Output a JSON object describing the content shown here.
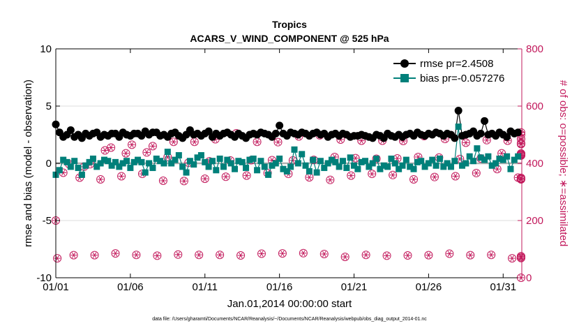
{
  "colors": {
    "rmse": "#000000",
    "bias": "#00807a",
    "obs": "#c2185b",
    "zero_line": "#b0b0b0",
    "grid": "#dddddd"
  },
  "chart_data": {
    "type": "line",
    "title": "Tropics",
    "subtitle": "ACARS_V_WIND_COMPONENT @ 525 hPa",
    "xlabel": "Jan.01,2014 00:00:00 start",
    "ylabel_left": "rmse and bias (model - observation)",
    "ylabel_right": "# of obs: o=possible; ∗=assimilated",
    "footnote": "data file: /Users/gharamti/Documents/NCAR/Reanalysis/~/Documents/NCAR/Reanalysis/webpub/obs_diag_output_2014-01.nc",
    "ylim_left": [
      -10,
      10
    ],
    "ylim_right": [
      0,
      800
    ],
    "xlim": [
      0,
      31.25
    ],
    "y_ticks_left": [
      "10",
      "5",
      "0",
      "-5",
      "-10"
    ],
    "y_ticks_right": [
      "800",
      "600",
      "400",
      "200",
      "0"
    ],
    "x_ticks": [
      "01/01",
      "01/06",
      "01/11",
      "01/16",
      "01/21",
      "01/26",
      "01/31"
    ],
    "x_tick_days": [
      0,
      5,
      10,
      15,
      20,
      25,
      30
    ],
    "legend": {
      "rmse": "rmse pr=2.4508",
      "bias": "bias pr=-0.057276",
      "position": "top-right"
    },
    "series": [
      {
        "name": "rmse",
        "values": [
          3.4,
          2.7,
          2.3,
          2.5,
          2.9,
          2.3,
          2.5,
          2.2,
          2.6,
          2.4,
          2.6,
          2.7,
          2.3,
          2.5,
          2.4,
          2.6,
          2.6,
          2.3,
          2.7,
          2.5,
          2.4,
          2.6,
          2.6,
          2.4,
          2.8,
          2.5,
          2.7,
          2.7,
          2.4,
          2.5,
          2.3,
          2.6,
          2.7,
          2.4,
          2.2,
          2.5,
          2.9,
          2.5,
          2.6,
          2.4,
          2.6,
          2.8,
          2.3,
          2.6,
          2.4,
          2.6,
          2.7,
          2.5,
          2.3,
          2.6,
          2.4,
          2.2,
          2.5,
          2.6,
          2.5,
          2.7,
          2.6,
          2.5,
          2.3,
          2.6,
          3.3,
          2.6,
          2.4,
          2.7,
          2.6,
          2.5,
          2.7,
          2.6,
          2.4,
          2.6,
          2.7,
          2.5,
          2.6,
          2.3,
          2.5,
          2.6,
          2.4,
          2.6,
          2.5,
          2.3,
          2.4,
          2.4,
          2.5,
          2.4,
          2.3,
          2.2,
          2.5,
          2.4,
          2.2,
          2.6,
          2.4,
          2.3,
          2.5,
          2.3,
          2.5,
          2.6,
          2.4,
          2.7,
          2.5,
          2.4,
          2.6,
          2.5,
          2.7,
          2.6,
          2.4,
          2.6,
          2.5,
          2.2,
          4.6,
          2.4,
          2.5,
          2.6,
          2.8,
          2.4,
          2.6,
          3.7,
          2.5,
          2.6,
          2.4,
          2.7,
          2.5,
          2.3,
          2.8,
          2.6,
          2.7
        ]
      },
      {
        "name": "bias",
        "values": [
          -1.0,
          -0.6,
          0.3,
          0.1,
          -0.3,
          0.2,
          -0.4,
          -1.0,
          -0.2,
          0.1,
          0.4,
          -0.3,
          0.0,
          0.3,
          0.2,
          -0.2,
          0.1,
          -0.3,
          0.0,
          0.2,
          -0.4,
          0.1,
          0.3,
          0.1,
          -0.8,
          0.0,
          -0.4,
          0.4,
          0.2,
          0.0,
          1.0,
          0.0,
          0.3,
          0.7,
          -0.3,
          -0.8,
          0.2,
          -0.1,
          0.5,
          0.7,
          0.1,
          -0.3,
          0.2,
          -0.6,
          0.4,
          -0.3,
          0.3,
          0.0,
          -0.5,
          0.2,
          0.1,
          -0.4,
          0.3,
          0.4,
          -0.6,
          0.2,
          -0.3,
          -1.0,
          -0.2,
          0.0,
          0.4,
          -0.5,
          -0.7,
          -0.3,
          1.2,
          0.0,
          0.8,
          -0.2,
          -0.7,
          0.3,
          -0.8,
          0.2,
          -0.4,
          0.0,
          0.3,
          0.1,
          -0.3,
          0.2,
          -0.4,
          0.5,
          -0.2,
          -0.5,
          0.1,
          0.2,
          -0.3,
          0.0,
          0.4,
          -0.5,
          -0.2,
          -0.3,
          0.4,
          0.0,
          -0.5,
          -0.2,
          0.3,
          -0.3,
          -0.5,
          0.1,
          0.2,
          -0.3,
          0.0,
          0.3,
          -0.2,
          0.4,
          -0.3,
          0.0,
          -0.3,
          0.2,
          3.2,
          -0.2,
          0.0,
          0.6,
          0.2,
          1.3,
          0.5,
          0.3,
          0.6,
          -0.2,
          0.0,
          0.4,
          0.3,
          0.6,
          -0.5,
          0.3,
          0.6
        ]
      },
      {
        "name": "obs_possible",
        "values": [
          200,
          68,
          367,
          397,
          79,
          350,
          388,
          397,
          79,
          344,
          445,
          455,
          85,
          355,
          435,
          465,
          80,
          363,
          438,
          460,
          77,
          339,
          422,
          475,
          81,
          338,
          402,
          475,
          80,
          346,
          407,
          484,
          80,
          353,
          410,
          505,
          78,
          357,
          411,
          475,
          84,
          366,
          411,
          474,
          85,
          363,
          410,
          494,
          86,
          351,
          412,
          498,
          83,
          342,
          422,
          483,
          73,
          357,
          418,
          479,
          80,
          363,
          416,
          479,
          77,
          359,
          417,
          478,
          78,
          344,
          422,
          495,
          79,
          352,
          420,
          485,
          84,
          355,
          415,
          472,
          79,
          366,
          417,
          481,
          80,
          380,
          435,
          479,
          68,
          350,
          428,
          485,
          69,
          346,
          427,
          470,
          70,
          344,
          431,
          467,
          74,
          349,
          434,
          508,
          75,
          345,
          434,
          500,
          0
        ],
        "note": "days plotted in x_days_obs"
      },
      {
        "name": "obs_assimilated",
        "values": [
          200,
          68,
          367,
          397,
          79,
          350,
          388,
          397,
          79,
          344,
          445,
          455,
          85,
          355,
          435,
          465,
          80,
          363,
          438,
          460,
          77,
          339,
          422,
          475,
          81,
          338,
          402,
          475,
          80,
          346,
          407,
          484,
          80,
          353,
          410,
          505,
          78,
          357,
          411,
          475,
          84,
          366,
          411,
          474,
          85,
          363,
          410,
          494,
          86,
          351,
          412,
          498,
          83,
          342,
          422,
          483,
          73,
          357,
          418,
          479,
          80,
          363,
          416,
          479,
          77,
          359,
          417,
          478,
          78,
          344,
          422,
          495,
          79,
          352,
          420,
          485,
          84,
          355,
          415,
          472,
          79,
          366,
          417,
          481,
          80,
          380,
          435,
          479,
          68,
          350,
          428,
          485,
          69,
          346,
          427,
          470,
          70,
          344,
          431,
          467,
          74,
          349,
          434,
          508,
          75,
          345,
          434,
          500,
          0
        ]
      }
    ],
    "x_days_obs": [
      0.0,
      0.1,
      0.5,
      0.9,
      1.2,
      1.6,
      1.9,
      2.3,
      2.6,
      3.0,
      3.3,
      3.7,
      4.0,
      4.4,
      4.7,
      5.1,
      5.4,
      5.8,
      6.1,
      6.5,
      6.8,
      7.2,
      7.5,
      7.9,
      8.2,
      8.6,
      8.9,
      9.3,
      9.6,
      10.0,
      10.3,
      10.7,
      11.0,
      11.4,
      11.7,
      12.1,
      12.4,
      12.8,
      13.1,
      13.5,
      13.8,
      14.2,
      14.5,
      14.9,
      15.2,
      15.6,
      15.9,
      16.3,
      16.6,
      17.0,
      17.3,
      17.7,
      18.0,
      18.4,
      18.7,
      19.1,
      19.4,
      19.8,
      20.1,
      20.5,
      20.8,
      21.2,
      21.5,
      21.9,
      22.2,
      22.6,
      22.9,
      23.3,
      23.6,
      24.0,
      24.3,
      24.7,
      25.0,
      25.4,
      25.7,
      26.1,
      26.4,
      26.8,
      27.1,
      27.5,
      27.8,
      28.2,
      28.5,
      28.9,
      29.2,
      29.6,
      29.9,
      30.3,
      30.6,
      31.0,
      31.2,
      31.2,
      31.2,
      31.2,
      31.2,
      31.2,
      31.2,
      31.2,
      31.2,
      31.2,
      31.2,
      31.2,
      31.2,
      31.2,
      31.2,
      31.2,
      31.2,
      31.2,
      31.2
    ]
  }
}
